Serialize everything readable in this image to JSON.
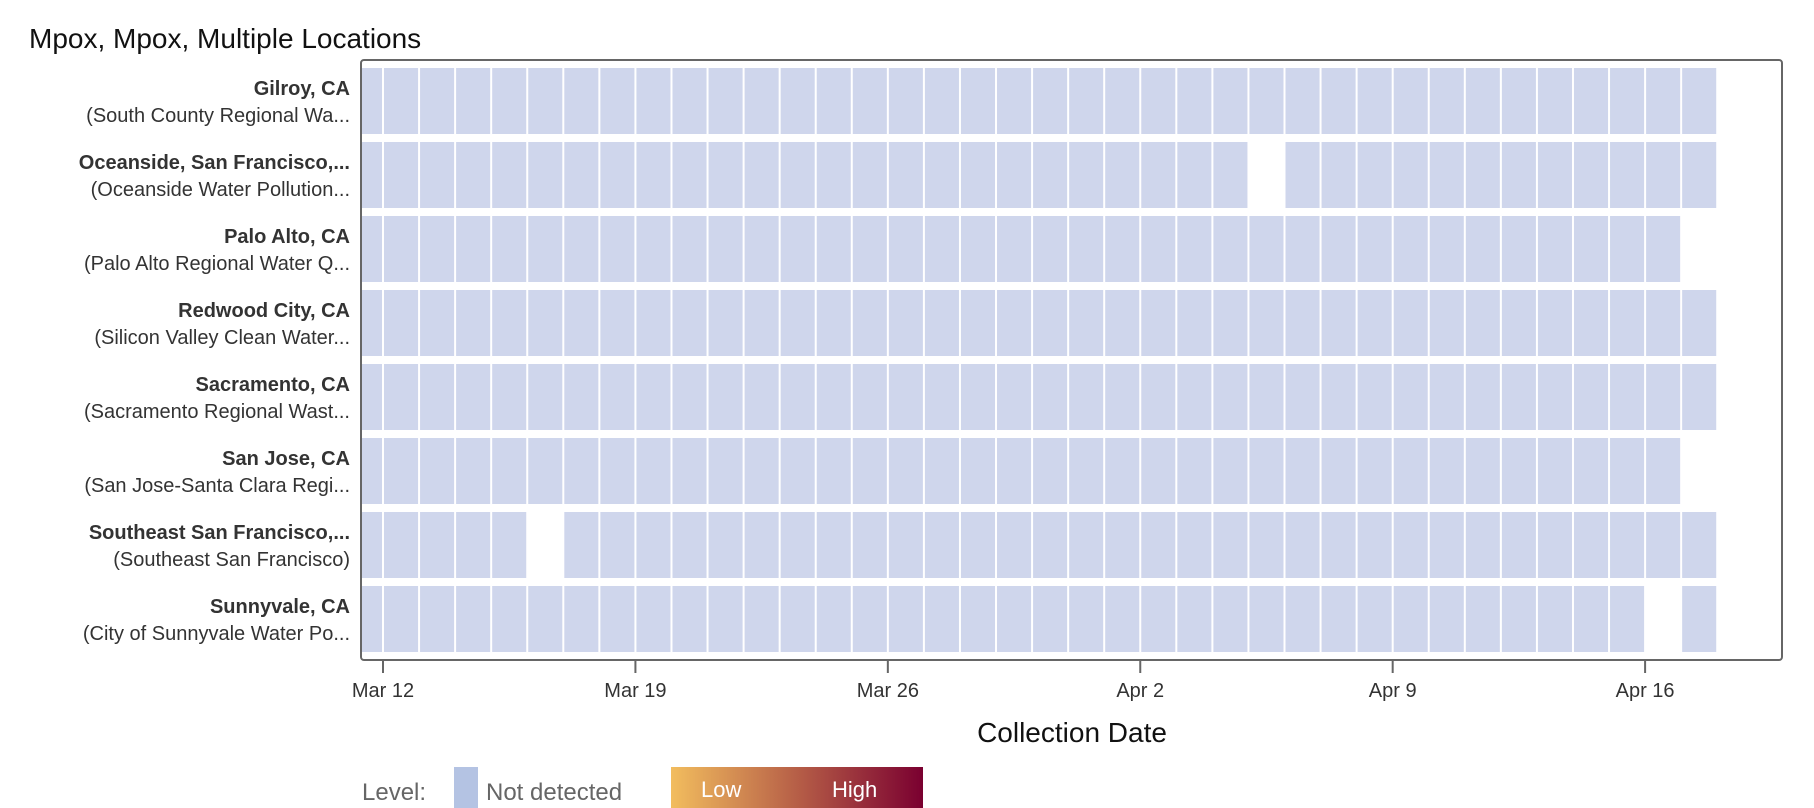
{
  "chart_data": {
    "type": "heatmap",
    "title": "Mpox, Mpox, Multiple Locations",
    "xlabel": "Collection Date",
    "ylabel": "",
    "x_ticks": [
      "Mar 12",
      "Mar 19",
      "Mar 26",
      "Apr 2",
      "Apr 9",
      "Apr 16"
    ],
    "dates": [
      "Mar 11",
      "Mar 12",
      "Mar 13",
      "Mar 14",
      "Mar 15",
      "Mar 16",
      "Mar 17",
      "Mar 18",
      "Mar 19",
      "Mar 20",
      "Mar 21",
      "Mar 22",
      "Mar 23",
      "Mar 24",
      "Mar 25",
      "Mar 26",
      "Mar 27",
      "Mar 28",
      "Mar 29",
      "Mar 30",
      "Mar 31",
      "Apr 1",
      "Apr 2",
      "Apr 3",
      "Apr 4",
      "Apr 5",
      "Apr 6",
      "Apr 7",
      "Apr 8",
      "Apr 9",
      "Apr 10",
      "Apr 11",
      "Apr 12",
      "Apr 13",
      "Apr 14",
      "Apr 15",
      "Apr 16",
      "Apr 17"
    ],
    "series": [
      {
        "name": "Gilroy, CA",
        "site": "(South County Regional Wa...",
        "level": "Not detected",
        "missing_dates": []
      },
      {
        "name": "Oceanside, San Francisco,...",
        "site": "(Oceanside Water Pollution...",
        "level": "Not detected",
        "missing_dates": [
          "Apr 5"
        ]
      },
      {
        "name": "Palo Alto, CA",
        "site": "(Palo Alto Regional Water Q...",
        "level": "Not detected",
        "missing_dates": [
          "Apr 17"
        ]
      },
      {
        "name": "Redwood City, CA",
        "site": "(Silicon Valley Clean Water...",
        "level": "Not detected",
        "missing_dates": []
      },
      {
        "name": "Sacramento, CA",
        "site": "(Sacramento Regional Wast...",
        "level": "Not detected",
        "missing_dates": []
      },
      {
        "name": "San Jose, CA",
        "site": "(San Jose-Santa Clara Regi...",
        "level": "Not detected",
        "missing_dates": [
          "Apr 17"
        ]
      },
      {
        "name": "Southeast San Francisco,...",
        "site": "(Southeast San Francisco)",
        "level": "Not detected",
        "missing_dates": [
          "Mar 16"
        ]
      },
      {
        "name": "Sunnyvale, CA",
        "site": "(City of Sunnyvale Water Po...",
        "level": "Not detected",
        "missing_dates": [
          "Apr 16"
        ]
      }
    ],
    "legend": {
      "label": "Level:",
      "not_detected": "Not detected",
      "low": "Low",
      "high": "High",
      "placement": "bottom-left"
    },
    "colors": {
      "not_detected_cell": "#cfd6ec",
      "not_detected_swatch": "#b4c3e3",
      "gradient_low": "#f2bd5e",
      "gradient_high": "#7a0030"
    },
    "grid": false
  }
}
